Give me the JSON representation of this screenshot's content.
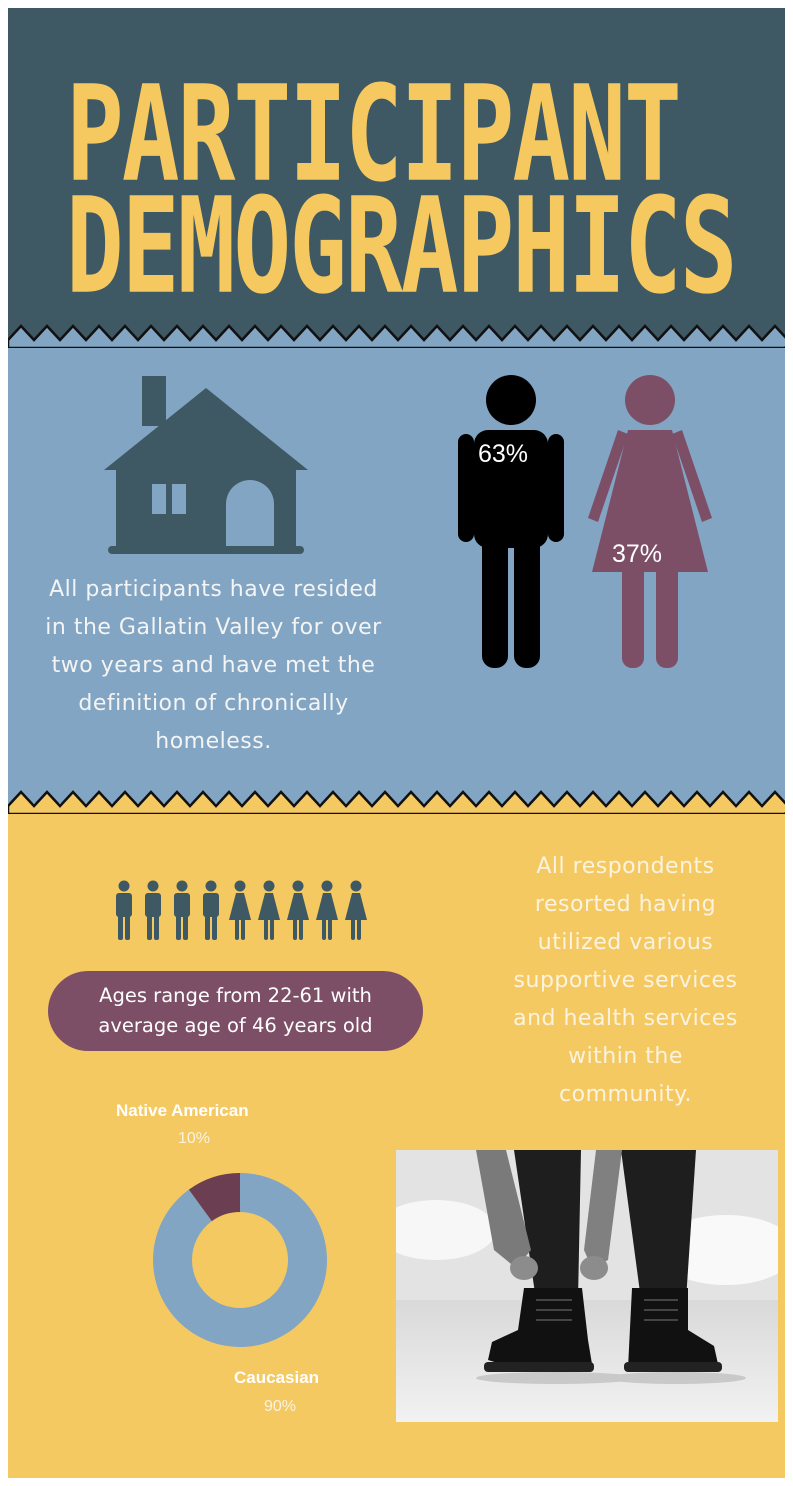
{
  "colors": {
    "header_bg": "#3f5964",
    "title_color": "#f5c95f",
    "middle_bg": "#82a5c3",
    "bottom_bg": "#f5c962",
    "house_color": "#3f5964",
    "male_color": "#000000",
    "female_color": "#7d4f67",
    "pill_color": "#7d4f67",
    "donut_main": "#82a5c3",
    "donut_minor": "#6b3f51"
  },
  "header": {
    "title_line1": "PARTICIPANT",
    "title_line2": "DEMOGRAPHICS"
  },
  "residence": {
    "icon": "house-icon",
    "lines": [
      "All participants have resided",
      "in the Gallatin Valley for over",
      "two years and have met the",
      "definition of chronically",
      "homeless."
    ]
  },
  "gender": {
    "male_icon": "male-figure-icon",
    "female_icon": "female-figure-icon",
    "male_pct": "63%",
    "female_pct": "37%",
    "male_value": 63,
    "female_value": 37
  },
  "ages": {
    "icon_row": [
      "male",
      "male",
      "male",
      "male",
      "female",
      "female",
      "female",
      "female",
      "female"
    ],
    "line1": "Ages range from 22-61 with",
    "line2": "average age of 46 years old"
  },
  "services": {
    "lines": [
      "All respondents",
      "resorted having",
      "utilized various",
      "supportive services",
      "and health services",
      "within the",
      "community."
    ]
  },
  "chart_data": {
    "type": "pie",
    "categories": [
      "Caucasian",
      "Native American"
    ],
    "values": [
      90,
      10
    ],
    "labels": [
      "90%",
      "10%"
    ]
  },
  "photo": {
    "icon": "boots-photo"
  }
}
